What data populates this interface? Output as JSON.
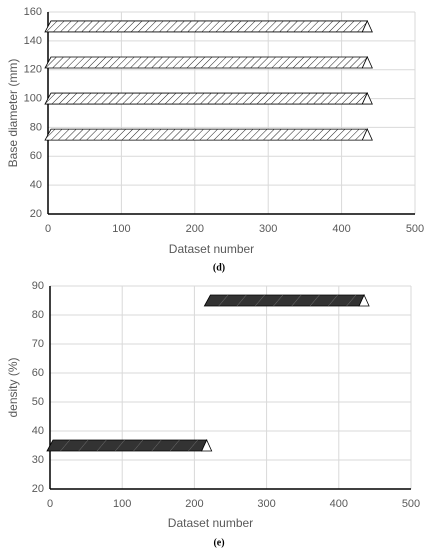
{
  "chart_data": [
    {
      "type": "scatter",
      "xlabel": "Dataset number",
      "ylabel": "Base diameter (mm)",
      "caption": "(d)",
      "xlim": [
        0,
        500
      ],
      "xticks": [
        0,
        100,
        200,
        300,
        400,
        500
      ],
      "ylim": [
        20,
        160
      ],
      "yticks": [
        20,
        40,
        60,
        80,
        100,
        120,
        140,
        160
      ],
      "grid": true,
      "series": [
        {
          "color": "#ffffff",
          "x": [
            0,
            435
          ],
          "values": [
            150,
            150
          ]
        },
        {
          "color": "#ffffff",
          "x": [
            0,
            435
          ],
          "values": [
            125,
            125
          ]
        },
        {
          "color": "#ffffff",
          "x": [
            0,
            435
          ],
          "values": [
            100,
            100
          ]
        },
        {
          "color": "#ffffff",
          "x": [
            0,
            435
          ],
          "values": [
            75,
            75
          ]
        }
      ]
    },
    {
      "type": "scatter",
      "xlabel": "Dataset number",
      "ylabel": "density (%)",
      "caption": "(e)",
      "xlim": [
        0,
        500
      ],
      "xticks": [
        0,
        100,
        200,
        300,
        400,
        500
      ],
      "ylim": [
        20,
        90
      ],
      "yticks": [
        20,
        30,
        40,
        50,
        60,
        70,
        80,
        90
      ],
      "grid": true,
      "series": [
        {
          "color": "#333333",
          "x": [
            0,
            217
          ],
          "values": [
            35,
            35
          ]
        },
        {
          "color": "#333333",
          "x": [
            218,
            435
          ],
          "values": [
            85,
            85
          ]
        }
      ]
    }
  ]
}
